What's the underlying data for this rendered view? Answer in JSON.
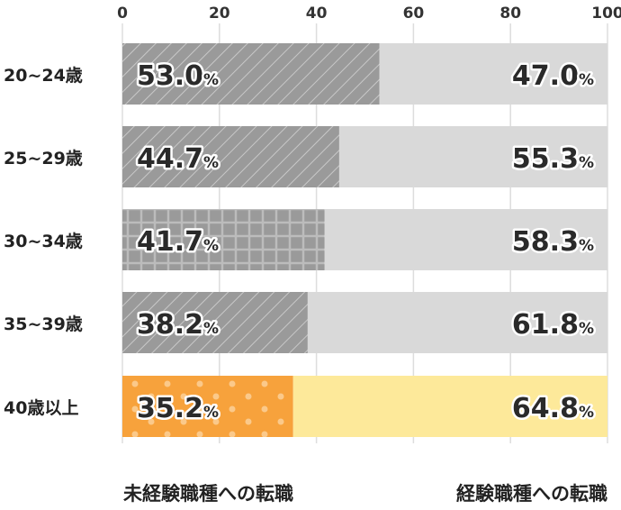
{
  "chart_data": {
    "type": "bar",
    "stacked": true,
    "orientation": "horizontal",
    "categories": [
      "20~24歳",
      "25~29歳",
      "30~34歳",
      "35~39歳",
      "40歳以上"
    ],
    "series": [
      {
        "name": "未経験職種への転職",
        "values": [
          53.0,
          44.7,
          41.7,
          38.2,
          35.2
        ]
      },
      {
        "name": "経験職種への転職",
        "values": [
          47.0,
          55.3,
          58.3,
          61.8,
          64.8
        ]
      }
    ],
    "value_labels": {
      "left": [
        "53.0",
        "44.7",
        "41.7",
        "38.2",
        "35.2"
      ],
      "right": [
        "47.0",
        "55.3",
        "58.3",
        "61.8",
        "64.8"
      ],
      "unit": "%"
    },
    "x_ticks": [
      "0",
      "20",
      "40",
      "60",
      "80",
      "100"
    ],
    "xlim": [
      0,
      100
    ],
    "grid": true,
    "legend_placement": "bottom",
    "colors": {
      "first_gray": "#9a9a9a",
      "second_gray": "#d9d9d9",
      "first_highlight": "#f7a23c",
      "second_highlight": "#fde99a",
      "grid": "#dddddd"
    },
    "patterns": [
      "diagonal",
      "diagonal",
      "grid",
      "diagonal",
      "dots"
    ]
  }
}
